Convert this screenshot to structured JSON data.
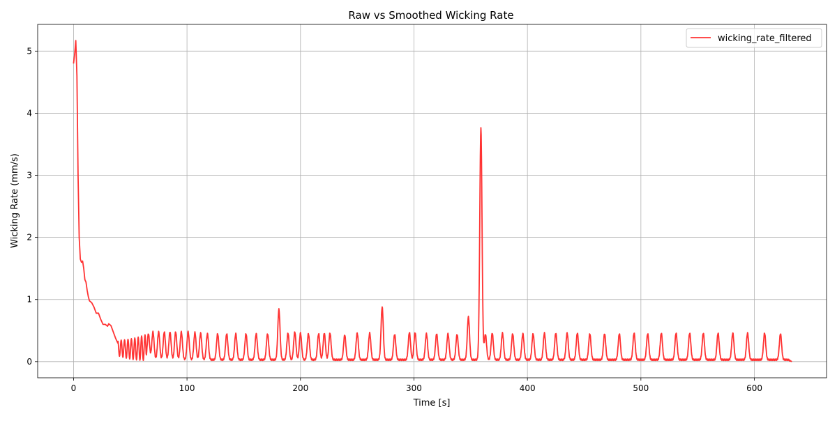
{
  "chart_data": {
    "type": "line",
    "title": "Raw vs Smoothed Wicking Rate",
    "xlabel": "Time [s]",
    "ylabel": "Wicking Rate (mm/s)",
    "xlim": [
      -31.6,
      663.6
    ],
    "ylim": [
      -0.26,
      5.43
    ],
    "xticks": [
      0,
      100,
      200,
      300,
      400,
      500,
      600
    ],
    "yticks": [
      0,
      1,
      2,
      3,
      4,
      5
    ],
    "grid": true,
    "legend_position": "top-right",
    "series": [
      {
        "name": "wicking_rate_filtered",
        "color": "#ff3333",
        "baseline": 0.03,
        "decay_points": [
          [
            0,
            4.8
          ],
          [
            1,
            4.95
          ],
          [
            2,
            5.17
          ],
          [
            3,
            4.6
          ],
          [
            4,
            3.0
          ],
          [
            5,
            2.0
          ],
          [
            6,
            1.65
          ],
          [
            7,
            1.6
          ],
          [
            8,
            1.62
          ],
          [
            9,
            1.5
          ],
          [
            10,
            1.32
          ],
          [
            11,
            1.28
          ],
          [
            12,
            1.15
          ],
          [
            13,
            1.05
          ],
          [
            14,
            0.98
          ],
          [
            16,
            0.95
          ],
          [
            18,
            0.88
          ],
          [
            20,
            0.78
          ],
          [
            22,
            0.78
          ],
          [
            24,
            0.68
          ],
          [
            26,
            0.6
          ],
          [
            28,
            0.6
          ],
          [
            30,
            0.57
          ],
          [
            31,
            0.61
          ],
          [
            33,
            0.58
          ],
          [
            35,
            0.48
          ],
          [
            37,
            0.38
          ],
          [
            39,
            0.3
          ]
        ],
        "damped": {
          "start": 39,
          "end": 64,
          "period": 3.0,
          "amp_start": 0.25,
          "amp_end": 0.42,
          "center": 0.22
        },
        "pulse_width": 1.4,
        "peaks": [
          [
            66,
            0.45
          ],
          [
            70,
            0.48
          ],
          [
            75,
            0.48
          ],
          [
            80,
            0.48
          ],
          [
            85,
            0.48
          ],
          [
            90,
            0.48
          ],
          [
            95,
            0.48
          ],
          [
            101,
            0.48
          ],
          [
            107,
            0.47
          ],
          [
            112,
            0.46
          ],
          [
            118,
            0.45
          ],
          [
            127,
            0.45
          ],
          [
            135,
            0.45
          ],
          [
            143,
            0.45
          ],
          [
            152,
            0.45
          ],
          [
            161,
            0.45
          ],
          [
            171,
            0.45
          ],
          [
            181,
            0.84
          ],
          [
            189,
            0.46
          ],
          [
            195,
            0.48
          ],
          [
            200,
            0.46
          ],
          [
            207,
            0.45
          ],
          [
            216,
            0.45
          ],
          [
            221,
            0.46
          ],
          [
            226,
            0.46
          ],
          [
            239,
            0.43
          ],
          [
            250,
            0.46
          ],
          [
            261,
            0.46
          ],
          [
            272,
            0.88
          ],
          [
            283,
            0.44
          ],
          [
            296,
            0.47
          ],
          [
            301,
            0.47
          ],
          [
            311,
            0.45
          ],
          [
            320,
            0.45
          ],
          [
            330,
            0.45
          ],
          [
            338,
            0.44
          ],
          [
            348,
            0.72
          ],
          [
            359,
            3.76
          ],
          [
            363,
            0.44
          ],
          [
            369,
            0.46
          ],
          [
            378,
            0.46
          ],
          [
            387,
            0.45
          ],
          [
            396,
            0.45
          ],
          [
            405,
            0.45
          ],
          [
            415,
            0.46
          ],
          [
            425,
            0.46
          ],
          [
            435,
            0.46
          ],
          [
            444,
            0.46
          ],
          [
            455,
            0.45
          ],
          [
            468,
            0.45
          ],
          [
            481,
            0.45
          ],
          [
            494,
            0.46
          ],
          [
            506,
            0.45
          ],
          [
            518,
            0.46
          ],
          [
            531,
            0.46
          ],
          [
            543,
            0.46
          ],
          [
            555,
            0.46
          ],
          [
            568,
            0.46
          ],
          [
            581,
            0.46
          ],
          [
            594,
            0.46
          ],
          [
            609,
            0.46
          ],
          [
            623,
            0.45
          ]
        ],
        "end_x": 633,
        "end_y": 0.0
      }
    ]
  }
}
